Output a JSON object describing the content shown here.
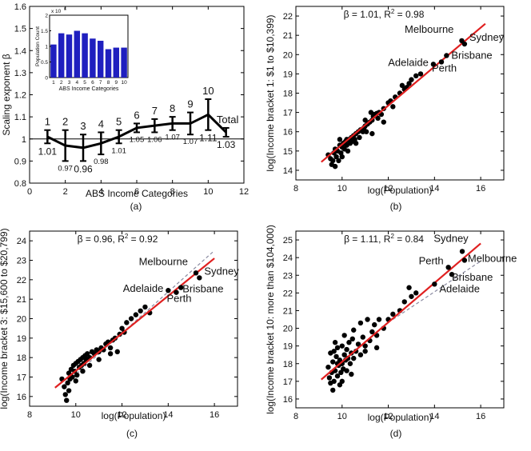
{
  "chart_data": [
    {
      "id": "a",
      "type": "line",
      "panel_label": "(a)",
      "xlabel": "ABS Income Categories",
      "ylabel": "Scaling exponent β",
      "xlim": [
        0,
        12
      ],
      "ylim": [
        0.8,
        1.6
      ],
      "xticks": [
        "0",
        "2",
        "4",
        "6",
        "8",
        "10",
        "12"
      ],
      "yticks": [
        "0.8",
        "0.9",
        "1",
        "1.1",
        "1.2",
        "1.3",
        "1.4",
        "1.5",
        "1.6"
      ],
      "reference_line": 1,
      "x": [
        1,
        2,
        3,
        4,
        5,
        6,
        7,
        8,
        9,
        10,
        11
      ],
      "y": [
        1.01,
        0.97,
        0.96,
        0.98,
        1.01,
        1.05,
        1.06,
        1.07,
        1.07,
        1.11,
        1.03
      ],
      "err": [
        0.03,
        0.07,
        0.06,
        0.05,
        0.03,
        0.02,
        0.03,
        0.03,
        0.05,
        0.07,
        0.02
      ],
      "top_labels": [
        "1",
        "2",
        "3",
        "4",
        "5",
        "6",
        "7",
        "8",
        "9",
        "10",
        "Total"
      ],
      "value_labels": [
        "1.01",
        "0.97",
        "0.96",
        "0.98",
        "1.01",
        "1.05",
        "1.06",
        "1.07",
        "1.07",
        "1.11",
        "1.03"
      ],
      "inset": {
        "type": "bar",
        "xlabel": "ABS Income Categories",
        "ylabel": "Population Count",
        "multiplier": "x 10",
        "exponent": "6",
        "categories": [
          "1",
          "2",
          "3",
          "4",
          "5",
          "6",
          "7",
          "8",
          "9",
          "10"
        ],
        "values": [
          1.06,
          1.42,
          1.38,
          1.5,
          1.42,
          1.25,
          1.18,
          0.91,
          0.96,
          0.96
        ],
        "ylim": [
          0,
          2
        ],
        "yticks": [
          "0",
          "0.5",
          "1",
          "1.5",
          "2"
        ],
        "bar_color": "#1f1fbf"
      }
    },
    {
      "id": "b",
      "type": "scatter",
      "panel_label": "(b)",
      "xlabel": "log(Population)",
      "ylabel": "log(Income bracket 1: $1 to $10,399)",
      "annotation": "β = 1.01, R",
      "annotation_sup": "2",
      "annotation_end": " = 0.98",
      "xlim": [
        8,
        17
      ],
      "ylim": [
        13.5,
        22.5
      ],
      "xticks": [
        "8",
        "10",
        "12",
        "14",
        "16"
      ],
      "yticks": [
        "14",
        "15",
        "16",
        "17",
        "18",
        "19",
        "20",
        "21",
        "22"
      ],
      "fit": {
        "x": [
          9.1,
          16.2
        ],
        "y": [
          14.43,
          21.6
        ]
      },
      "dashed": {
        "x": [
          9.5,
          16.0
        ],
        "y": [
          14.9,
          21.4
        ]
      },
      "cities": [
        {
          "name": "Melbourne",
          "x": 15.18,
          "y": 20.72
        },
        {
          "name": "Sydney",
          "x": 15.3,
          "y": 20.55
        },
        {
          "name": "Brisbane",
          "x": 14.52,
          "y": 19.95
        },
        {
          "name": "Perth",
          "x": 14.3,
          "y": 19.62
        },
        {
          "name": "Adelaide",
          "x": 13.95,
          "y": 19.5
        }
      ],
      "points": [
        [
          9.4,
          14.8
        ],
        [
          9.5,
          14.6
        ],
        [
          9.55,
          14.3
        ],
        [
          9.6,
          14.5
        ],
        [
          9.65,
          14.9
        ],
        [
          9.7,
          14.2
        ],
        [
          9.7,
          15.1
        ],
        [
          9.75,
          14.7
        ],
        [
          9.8,
          15.0
        ],
        [
          9.85,
          14.5
        ],
        [
          9.9,
          15.3
        ],
        [
          9.95,
          14.9
        ],
        [
          10.0,
          15.2
        ],
        [
          10.0,
          14.7
        ],
        [
          10.05,
          15.4
        ],
        [
          10.1,
          15.1
        ],
        [
          10.15,
          15.5
        ],
        [
          10.2,
          15.3
        ],
        [
          10.25,
          15.0
        ],
        [
          10.3,
          15.6
        ],
        [
          10.35,
          15.4
        ],
        [
          10.4,
          15.7
        ],
        [
          10.45,
          15.5
        ],
        [
          10.5,
          15.8
        ],
        [
          10.55,
          15.6
        ],
        [
          10.6,
          15.9
        ],
        [
          10.7,
          16.0
        ],
        [
          10.75,
          15.7
        ],
        [
          10.8,
          16.1
        ],
        [
          10.9,
          16.0
        ],
        [
          10.95,
          16.2
        ],
        [
          11.0,
          16.3
        ],
        [
          11.05,
          16.0
        ],
        [
          11.1,
          16.4
        ],
        [
          11.2,
          16.5
        ],
        [
          11.3,
          16.6
        ],
        [
          11.35,
          16.8
        ],
        [
          11.4,
          16.9
        ],
        [
          11.5,
          16.95
        ],
        [
          11.55,
          16.7
        ],
        [
          11.6,
          17.0
        ],
        [
          11.7,
          16.9
        ],
        [
          11.8,
          17.2
        ],
        [
          12.0,
          17.5
        ],
        [
          12.1,
          17.6
        ],
        [
          12.3,
          17.8
        ],
        [
          12.5,
          18.0
        ],
        [
          12.6,
          18.4
        ],
        [
          12.8,
          18.3
        ],
        [
          12.9,
          18.5
        ],
        [
          13.0,
          18.7
        ],
        [
          13.2,
          18.9
        ],
        [
          13.4,
          19.0
        ],
        [
          11.3,
          15.9
        ],
        [
          11.8,
          16.5
        ],
        [
          9.9,
          15.6
        ],
        [
          10.2,
          15.6
        ],
        [
          10.6,
          15.4
        ],
        [
          11.0,
          16.6
        ],
        [
          11.25,
          17.0
        ],
        [
          12.2,
          17.3
        ],
        [
          12.7,
          18.2
        ]
      ]
    },
    {
      "id": "c",
      "type": "scatter",
      "panel_label": "(c)",
      "xlabel": "log(Population)",
      "ylabel": "log(Income bracket 3: $15,600 to $20,799)",
      "annotation": "β = 0.96, R",
      "annotation_sup": "2",
      "annotation_end": " = 0.92",
      "xlim": [
        8,
        17
      ],
      "ylim": [
        15.5,
        24.5
      ],
      "xticks": [
        "8",
        "10",
        "12",
        "14",
        "16"
      ],
      "yticks": [
        "16",
        "17",
        "18",
        "19",
        "20",
        "21",
        "22",
        "23",
        "24"
      ],
      "fit": {
        "x": [
          9.1,
          16.0
        ],
        "y": [
          16.45,
          23.1
        ]
      },
      "dashed": {
        "x": [
          9.5,
          16.0
        ],
        "y": [
          16.6,
          23.5
        ]
      },
      "cities": [
        {
          "name": "Melbourne",
          "x": 15.2,
          "y": 22.35
        },
        {
          "name": "Sydney",
          "x": 15.35,
          "y": 22.1
        },
        {
          "name": "Brisbane",
          "x": 14.55,
          "y": 21.6
        },
        {
          "name": "Perth",
          "x": 14.35,
          "y": 21.35
        },
        {
          "name": "Adelaide",
          "x": 14.0,
          "y": 21.45
        }
      ],
      "points": [
        [
          9.4,
          16.9
        ],
        [
          9.5,
          16.5
        ],
        [
          9.55,
          16.1
        ],
        [
          9.6,
          15.8
        ],
        [
          9.65,
          16.7
        ],
        [
          9.7,
          17.2
        ],
        [
          9.75,
          16.9
        ],
        [
          9.8,
          17.4
        ],
        [
          9.85,
          17.0
        ],
        [
          9.9,
          17.6
        ],
        [
          9.95,
          17.3
        ],
        [
          10.0,
          17.7
        ],
        [
          10.05,
          17.1
        ],
        [
          10.1,
          17.8
        ],
        [
          10.15,
          17.5
        ],
        [
          10.2,
          17.9
        ],
        [
          10.25,
          17.6
        ],
        [
          10.3,
          18.0
        ],
        [
          10.35,
          17.7
        ],
        [
          10.4,
          18.1
        ],
        [
          10.45,
          17.9
        ],
        [
          10.5,
          18.2
        ],
        [
          10.6,
          18.0
        ],
        [
          10.7,
          18.3
        ],
        [
          10.8,
          18.2
        ],
        [
          10.9,
          18.4
        ],
        [
          11.0,
          18.3
        ],
        [
          11.1,
          18.5
        ],
        [
          11.2,
          18.4
        ],
        [
          11.3,
          18.7
        ],
        [
          11.4,
          18.8
        ],
        [
          11.5,
          18.5
        ],
        [
          11.6,
          18.9
        ],
        [
          11.7,
          19.0
        ],
        [
          11.8,
          18.3
        ],
        [
          11.9,
          19.2
        ],
        [
          12.0,
          19.5
        ],
        [
          12.2,
          19.8
        ],
        [
          12.4,
          20.0
        ],
        [
          12.6,
          20.2
        ],
        [
          12.8,
          20.4
        ],
        [
          13.0,
          20.6
        ],
        [
          13.2,
          20.3
        ],
        [
          9.7,
          16.3
        ],
        [
          10.0,
          16.8
        ],
        [
          10.3,
          17.3
        ],
        [
          10.6,
          17.6
        ],
        [
          11.0,
          17.9
        ],
        [
          11.5,
          18.2
        ],
        [
          12.1,
          19.3
        ]
      ]
    },
    {
      "id": "d",
      "type": "scatter",
      "panel_label": "(d)",
      "xlabel": "log(Population)",
      "ylabel": "log(Income bracket 10: more than $104,000)",
      "annotation": "β = 1.11, R",
      "annotation_sup": "2",
      "annotation_end": " = 0.84",
      "xlim": [
        8,
        17
      ],
      "ylim": [
        15.5,
        25.5
      ],
      "xticks": [
        "8",
        "10",
        "12",
        "14",
        "16"
      ],
      "yticks": [
        "16",
        "17",
        "18",
        "19",
        "20",
        "21",
        "22",
        "23",
        "24",
        "25"
      ],
      "fit": {
        "x": [
          9.1,
          16.0
        ],
        "y": [
          17.1,
          24.8
        ]
      },
      "dashed": {
        "x": [
          12.2,
          16.0
        ],
        "y": [
          20.5,
          23.8
        ]
      },
      "cities": [
        {
          "name": "Sydney",
          "x": 15.2,
          "y": 24.35
        },
        {
          "name": "Melbourne",
          "x": 15.3,
          "y": 23.85
        },
        {
          "name": "Perth",
          "x": 14.6,
          "y": 23.45
        },
        {
          "name": "Brisbane",
          "x": 14.75,
          "y": 23.05
        },
        {
          "name": "Adelaide",
          "x": 14.0,
          "y": 22.5
        }
      ],
      "points": [
        [
          9.4,
          17.8
        ],
        [
          9.45,
          17.2
        ],
        [
          9.5,
          18.6
        ],
        [
          9.5,
          16.9
        ],
        [
          9.55,
          17.5
        ],
        [
          9.6,
          16.5
        ],
        [
          9.6,
          18.1
        ],
        [
          9.65,
          17.0
        ],
        [
          9.7,
          19.2
        ],
        [
          9.7,
          17.6
        ],
        [
          9.75,
          18.4
        ],
        [
          9.8,
          17.3
        ],
        [
          9.8,
          18.9
        ],
        [
          9.85,
          17.9
        ],
        [
          9.9,
          16.8
        ],
        [
          9.9,
          18.2
        ],
        [
          9.95,
          17.5
        ],
        [
          10.0,
          19.0
        ],
        [
          10.0,
          18.0
        ],
        [
          10.05,
          17.7
        ],
        [
          10.1,
          18.5
        ],
        [
          10.1,
          19.6
        ],
        [
          10.15,
          18.2
        ],
        [
          10.2,
          17.6
        ],
        [
          10.2,
          18.8
        ],
        [
          10.25,
          18.3
        ],
        [
          10.3,
          19.2
        ],
        [
          10.35,
          18.0
        ],
        [
          10.4,
          18.6
        ],
        [
          10.45,
          19.4
        ],
        [
          10.5,
          18.3
        ],
        [
          10.5,
          19.9
        ],
        [
          10.6,
          18.7
        ],
        [
          10.7,
          19.1
        ],
        [
          10.8,
          18.5
        ],
        [
          10.9,
          19.5
        ],
        [
          11.0,
          19.0
        ],
        [
          11.1,
          20.5
        ],
        [
          11.2,
          19.3
        ],
        [
          11.3,
          19.8
        ],
        [
          11.4,
          20.2
        ],
        [
          11.5,
          19.6
        ],
        [
          11.6,
          20.5
        ],
        [
          11.8,
          20.0
        ],
        [
          12.0,
          20.5
        ],
        [
          12.2,
          20.8
        ],
        [
          12.5,
          21.0
        ],
        [
          12.7,
          21.5
        ],
        [
          12.9,
          22.3
        ],
        [
          13.0,
          21.8
        ],
        [
          13.2,
          22.0
        ],
        [
          10.8,
          20.3
        ],
        [
          10.0,
          17.0
        ],
        [
          9.8,
          18.0
        ],
        [
          10.4,
          17.4
        ],
        [
          11.0,
          18.7
        ],
        [
          11.5,
          18.9
        ],
        [
          9.65,
          18.7
        ]
      ]
    }
  ]
}
